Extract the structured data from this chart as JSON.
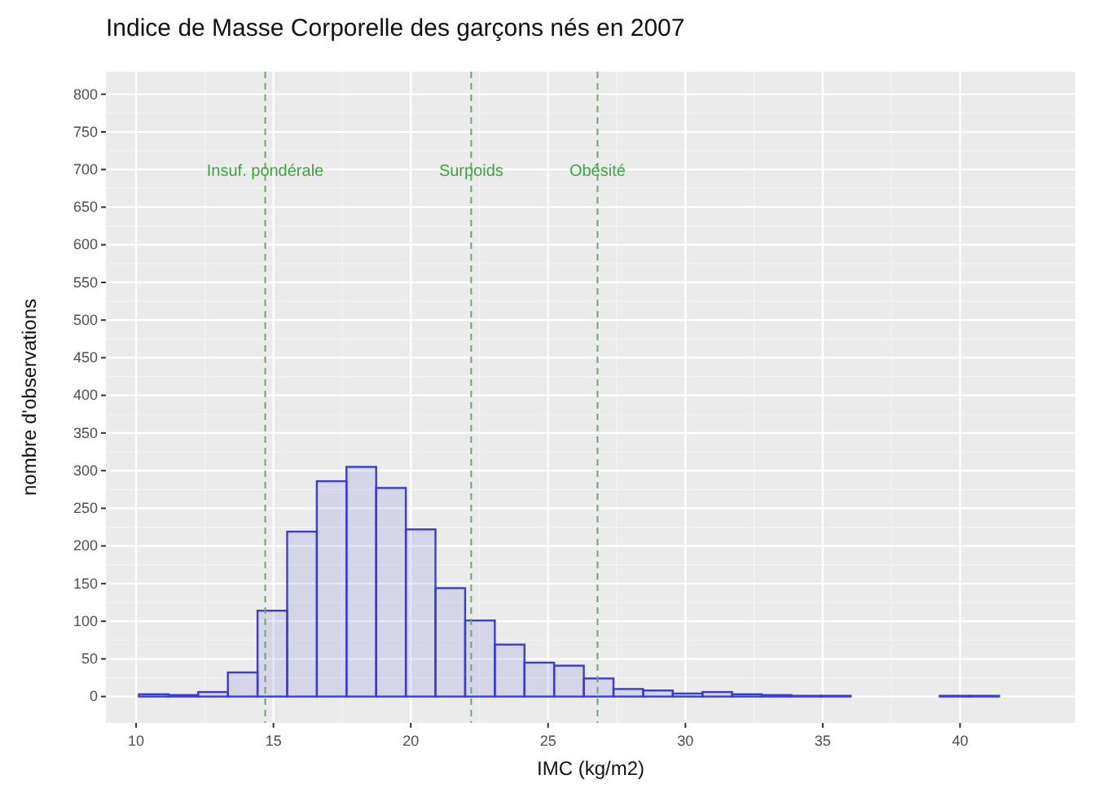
{
  "chart_data": {
    "type": "histogram",
    "title": "Indice de Masse Corporelle des garçons nés en 2007",
    "xlabel": "IMC (kg/m2)",
    "ylabel": "nombre d'observations",
    "bins": [
      10.1,
      11.18,
      12.26,
      13.34,
      14.42,
      15.5,
      16.58,
      17.66,
      18.74,
      19.82,
      20.9,
      21.98,
      23.06,
      24.14,
      25.22,
      26.3,
      27.38,
      28.46,
      29.54,
      30.62,
      31.7,
      32.78,
      33.86,
      34.94,
      36.02,
      37.1,
      38.18,
      39.26,
      40.34,
      41.42,
      42.5
    ],
    "values": [
      3,
      2,
      6,
      32,
      114,
      219,
      286,
      305,
      277,
      222,
      144,
      101,
      69,
      45,
      41,
      24,
      10,
      8,
      4,
      6,
      3,
      2,
      1,
      1,
      0,
      0,
      0,
      1,
      1,
      0
    ],
    "color": "#3b3bd8",
    "xlim": [
      8.9,
      44.2
    ],
    "xticks": [
      10,
      15,
      20,
      25,
      30,
      35,
      40
    ],
    "ylim": [
      -35,
      830
    ],
    "yticks": [
      0,
      50,
      100,
      150,
      200,
      250,
      300,
      350,
      400,
      450,
      500,
      550,
      600,
      650,
      700,
      750,
      800
    ],
    "grid": true,
    "ref_lines": [
      {
        "axis": "x",
        "value": 14.7,
        "label": "Insuf. pondérale",
        "color": "#6aa86a",
        "line_style": "dashed"
      },
      {
        "axis": "x",
        "value": 22.2,
        "label": "Surpoids",
        "color": "#6aa86a",
        "line_style": "dashed"
      },
      {
        "axis": "x",
        "value": 26.8,
        "label": "Obésité",
        "color": "#6aa86a",
        "line_style": "dashed"
      }
    ]
  }
}
